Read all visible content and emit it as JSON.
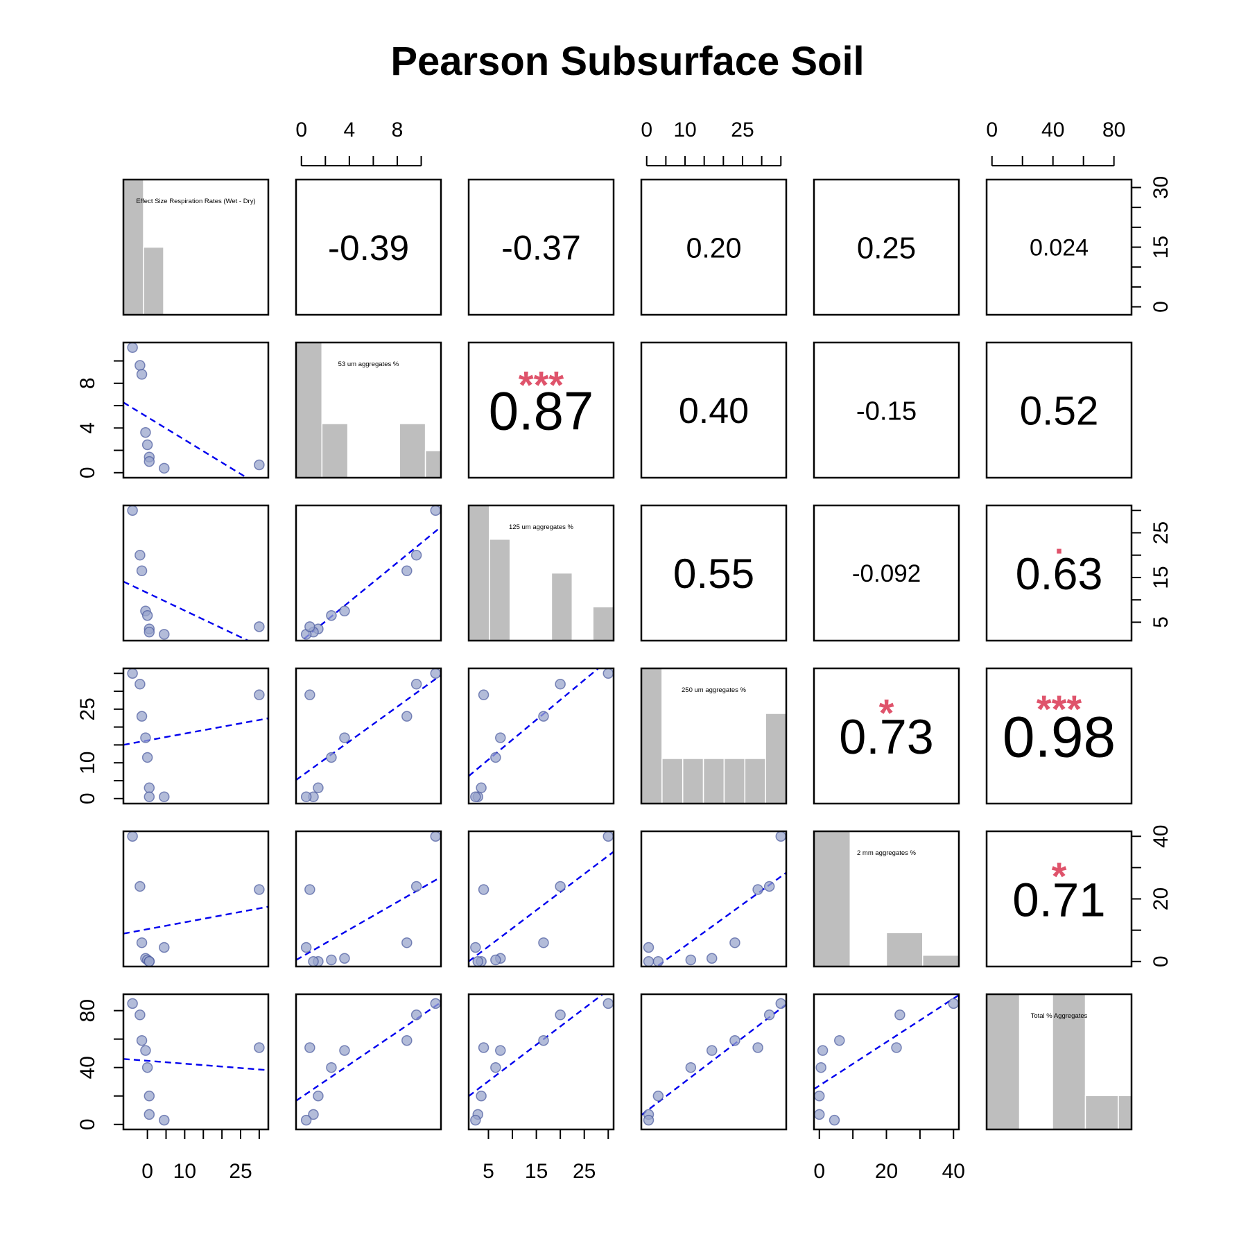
{
  "chart_data": {
    "type": "scatter-matrix",
    "title": "Pearson Subsurface Soil",
    "variables": [
      {
        "name": "Effect Size Respiration Rates (Wet - Dry)",
        "lim": [
          -5,
          31
        ],
        "values": [
          -4,
          -2,
          -1.5,
          -0.5,
          0,
          0.5,
          0.5,
          4.5,
          30
        ],
        "hist_bins": [
          -5,
          0,
          5,
          10,
          15,
          20,
          25,
          30,
          31
        ],
        "hist_counts": [
          6,
          3,
          0,
          0,
          0,
          0,
          0,
          0
        ]
      },
      {
        "name": "53 um aggregates %",
        "lim": [
          0,
          11.2
        ],
        "values": [
          11.2,
          9.6,
          8.8,
          3.6,
          2.5,
          1.4,
          1.0,
          0.4,
          0.7
        ],
        "hist_bins": [
          0,
          2,
          4,
          6,
          8,
          10,
          11.2
        ],
        "hist_counts": [
          5,
          2,
          0,
          0,
          2,
          1
        ]
      },
      {
        "name": "125 um aggregates %",
        "lim": [
          2,
          30
        ],
        "values": [
          30,
          20,
          16.5,
          7.5,
          6.5,
          3.5,
          2.8,
          2.3,
          4
        ],
        "hist_bins": [
          2,
          6,
          10,
          14,
          18,
          22,
          26,
          30
        ],
        "hist_counts": [
          4,
          3,
          0,
          0,
          2,
          0,
          1
        ]
      },
      {
        "name": "250 um aggregates %",
        "lim": [
          0,
          35
        ],
        "values": [
          35,
          32,
          23,
          17,
          11.5,
          3,
          0.5,
          0.5,
          29
        ],
        "hist_bins": [
          0,
          5,
          10,
          15,
          20,
          25,
          30,
          35
        ],
        "hist_counts": [
          6,
          2,
          2,
          2,
          2,
          2,
          4
        ]
      },
      {
        "name": "2 mm aggregates %",
        "lim": [
          0,
          40
        ],
        "values": [
          40,
          24,
          6,
          1,
          0.5,
          0,
          0,
          4.5,
          23
        ],
        "hist_bins": [
          0,
          10,
          20,
          30,
          40
        ],
        "hist_counts": [
          6,
          0,
          1.5,
          0.5
        ]
      },
      {
        "name": "Total % Aggregates",
        "lim": [
          0,
          88
        ],
        "values": [
          85,
          77,
          59,
          52,
          40,
          20,
          7,
          3,
          54
        ],
        "hist_bins": [
          0,
          20,
          40,
          60,
          80,
          88
        ],
        "hist_counts": [
          4,
          0,
          4,
          1,
          1
        ]
      }
    ],
    "correlations": [
      {
        "row": 0,
        "col": 1,
        "text": "-0.39",
        "stars": ""
      },
      {
        "row": 0,
        "col": 2,
        "text": "-0.37",
        "stars": ""
      },
      {
        "row": 0,
        "col": 3,
        "text": "0.20",
        "stars": ""
      },
      {
        "row": 0,
        "col": 4,
        "text": "0.25",
        "stars": ""
      },
      {
        "row": 0,
        "col": 5,
        "text": "0.024",
        "stars": ""
      },
      {
        "row": 1,
        "col": 2,
        "text": "0.87",
        "stars": "***"
      },
      {
        "row": 1,
        "col": 3,
        "text": "0.40",
        "stars": ""
      },
      {
        "row": 1,
        "col": 4,
        "text": "-0.15",
        "stars": ""
      },
      {
        "row": 1,
        "col": 5,
        "text": "0.52",
        "stars": ""
      },
      {
        "row": 2,
        "col": 3,
        "text": "0.55",
        "stars": ""
      },
      {
        "row": 2,
        "col": 4,
        "text": "-0.092",
        "stars": ""
      },
      {
        "row": 2,
        "col": 5,
        "text": "0.63",
        "stars": "."
      },
      {
        "row": 3,
        "col": 4,
        "text": "0.73",
        "stars": "*"
      },
      {
        "row": 3,
        "col": 5,
        "text": "0.98",
        "stars": "***"
      },
      {
        "row": 4,
        "col": 5,
        "text": "0.71",
        "stars": "*"
      }
    ],
    "axes": {
      "top": [
        {
          "panel": 1,
          "ticks": [
            0,
            2,
            4,
            6,
            8,
            10
          ],
          "labels": [
            "0",
            "4",
            "8"
          ],
          "label_at": [
            0,
            4,
            8
          ]
        },
        {
          "panel": 3,
          "ticks": [
            0,
            5,
            10,
            15,
            20,
            25,
            30,
            35
          ],
          "labels": [
            "0",
            "10",
            "25"
          ],
          "label_at": [
            0,
            10,
            25
          ]
        },
        {
          "panel": 5,
          "ticks": [
            0,
            20,
            40,
            60,
            80
          ],
          "labels": [
            "0",
            "40",
            "80"
          ],
          "label_at": [
            0,
            40,
            80
          ]
        }
      ],
      "bottom": [
        {
          "panel": 0,
          "ticks": [
            0,
            5,
            10,
            15,
            20,
            25,
            30
          ],
          "labels": [
            "0",
            "10",
            "25"
          ],
          "label_at": [
            0,
            10,
            25
          ]
        },
        {
          "panel": 2,
          "ticks": [
            5,
            10,
            15,
            20,
            25,
            30
          ],
          "labels": [
            "5",
            "15",
            "25"
          ],
          "label_at": [
            5,
            15,
            25
          ]
        },
        {
          "panel": 4,
          "ticks": [
            0,
            10,
            20,
            30,
            40
          ],
          "labels": [
            "0",
            "20",
            "40"
          ],
          "label_at": [
            0,
            20,
            40
          ]
        }
      ],
      "left": [
        {
          "panel": 1,
          "ticks": [
            0,
            2,
            4,
            6,
            8,
            10
          ],
          "labels": [
            "0",
            "4",
            "8"
          ],
          "label_at": [
            0,
            4,
            8
          ]
        },
        {
          "panel": 3,
          "ticks": [
            0,
            5,
            10,
            15,
            20,
            25,
            30,
            35
          ],
          "labels": [
            "0",
            "10",
            "25"
          ],
          "label_at": [
            0,
            10,
            25
          ]
        },
        {
          "panel": 5,
          "ticks": [
            0,
            20,
            40,
            60,
            80
          ],
          "labels": [
            "0",
            "40",
            "80"
          ],
          "label_at": [
            0,
            40,
            80
          ]
        }
      ],
      "right": [
        {
          "panel": 0,
          "ticks": [
            0,
            5,
            10,
            15,
            20,
            25,
            30
          ],
          "labels": [
            "0",
            "15",
            "30"
          ],
          "label_at": [
            0,
            15,
            30
          ],
          "lim": [
            -2,
            32
          ]
        },
        {
          "panel": 2,
          "ticks": [
            5,
            10,
            15,
            20,
            25,
            30
          ],
          "labels": [
            "5",
            "15",
            "25"
          ],
          "label_at": [
            5,
            15,
            25
          ]
        },
        {
          "panel": 4,
          "ticks": [
            0,
            10,
            20,
            30,
            40
          ],
          "labels": [
            "0",
            "20",
            "40"
          ],
          "label_at": [
            0,
            20,
            40
          ]
        }
      ]
    },
    "colors": {
      "point_fill": "#9AA5CC",
      "point_stroke": "#4A5A9E",
      "fit_line": "#0000EE",
      "hist_bar": "#BEBEBE",
      "stars": "#DF536B"
    }
  }
}
